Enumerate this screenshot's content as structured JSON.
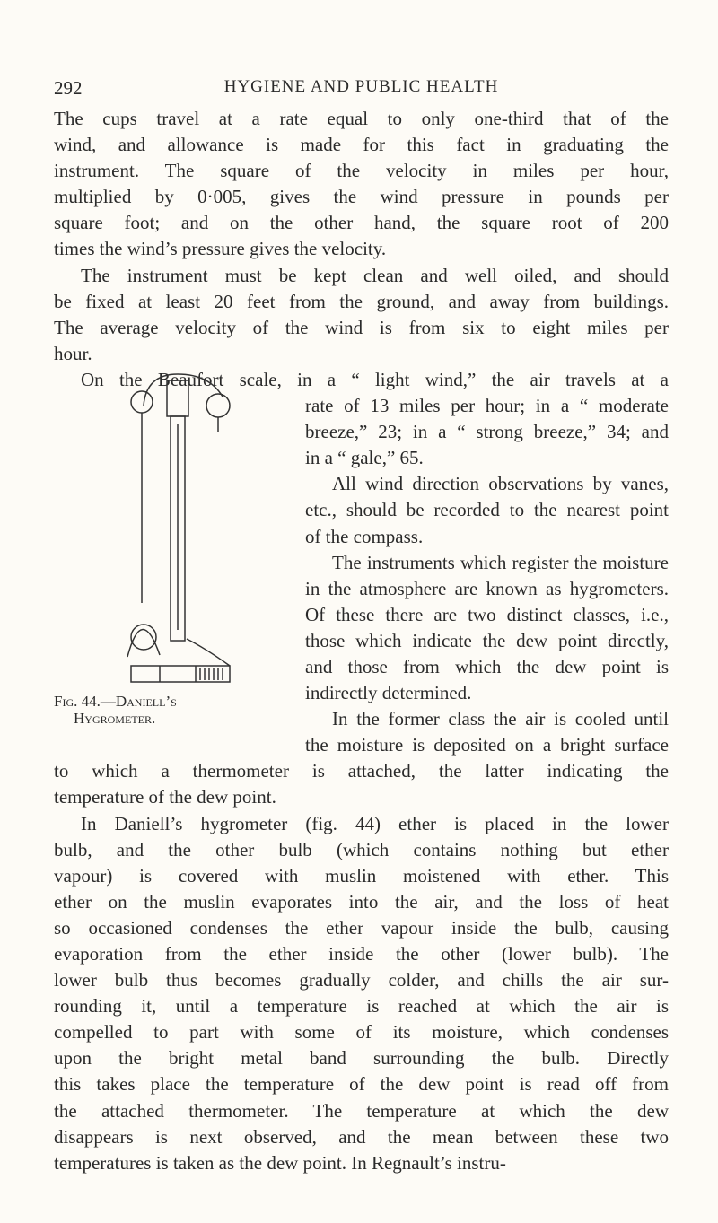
{
  "header": {
    "page_number": "292",
    "running_title": "HYGIENE AND PUBLIC HEALTH"
  },
  "paragraphs": [
    {
      "lines": [
        "The cups travel at a rate equal to only one-third that of the",
        "wind, and allowance is made for this fact in graduating the",
        "instrument. The square of the velocity in miles per hour,",
        "multiplied by 0·005, gives the wind pressure in pounds per",
        "square foot; and on the other hand, the square root of 200",
        "times the wind’s pressure gives the velocity."
      ]
    },
    {
      "lines": [
        "The instrument must be kept clean and well oiled, and should",
        "be fixed at least 20 feet from the ground, and away from buildings.",
        "The average velocity of the wind is from six to eight miles per",
        "hour."
      ]
    },
    {
      "lines": [
        "On the Beaufort scale, in a “ light wind,” the air travels at a",
        "rate of 13 miles per hour; in a “ moderate",
        "breeze,” 23; in a “ strong breeze,” 34; and",
        "in a “ gale,” 65."
      ]
    },
    {
      "lines": [
        "All wind direction observations by vanes,",
        "etc., should be recorded to the nearest point",
        "of the compass."
      ]
    },
    {
      "lines": [
        "The instruments which register the moisture",
        "in the atmosphere are known as hygrometers.",
        "Of these there are two distinct classes, i.e.,",
        "those which indicate the dew point directly,",
        "and those from which the dew point is",
        "indirectly determined."
      ]
    },
    {
      "lines": [
        "In the former class the air is cooled until",
        "the moisture is deposited on a bright surface",
        "to which a thermometer is attached, the latter indicating the",
        "temperature of the dew point."
      ]
    },
    {
      "lines": [
        "In Daniell’s hygrometer (fig. 44) ether is placed in the lower",
        "bulb, and the other bulb (which contains nothing but ether",
        "vapour) is covered with muslin moistened with ether. This",
        "ether on the muslin evaporates into the air, and the loss of heat",
        "so occasioned condenses the ether vapour inside the bulb, causing",
        "evaporation from the ether inside the other (lower bulb). The",
        "lower bulb thus becomes gradually colder, and chills the air sur-",
        "rounding it, until a temperature is reached at which the air is",
        "compelled to part with some of its moisture, which condenses",
        "upon the bright metal band surrounding the bulb. Directly",
        "this takes place the temperature of the dew point is read off from",
        "the attached thermometer. The temperature at which the dew",
        "disappears is next observed, and the mean between these two",
        "temperatures is taken as the dew point. In Regnault’s instru-"
      ]
    }
  ],
  "figure": {
    "caption_lines": [
      "Fig. 44.—Daniell’s",
      "Hygrometer."
    ]
  }
}
